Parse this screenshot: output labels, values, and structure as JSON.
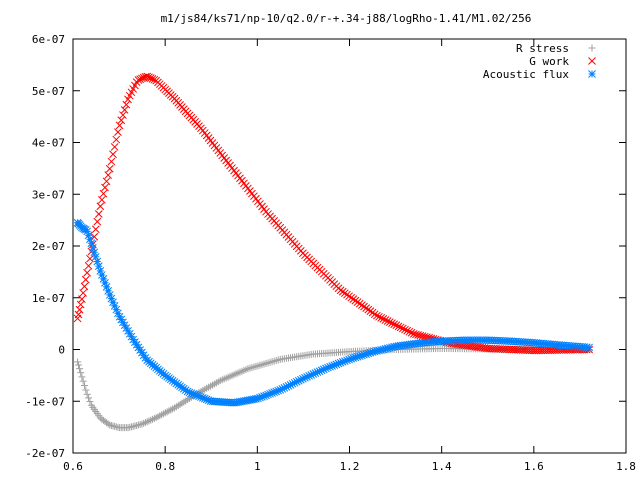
{
  "chart_data": {
    "type": "scatter",
    "title": "m1/js84/ks71/np-10/q2.0/r-+.34-j88/logRho-1.41/M1.02/256",
    "xlabel": "",
    "ylabel": "",
    "xlim": [
      0.6,
      1.8
    ],
    "ylim": [
      -2e-07,
      6e-07
    ],
    "x_ticks": [
      0.6,
      0.8,
      1.0,
      1.2,
      1.4,
      1.6,
      1.8
    ],
    "x_tick_labels": [
      "0.6",
      "0.8",
      "1",
      "1.2",
      "1.4",
      "1.6",
      "1.8"
    ],
    "y_ticks": [
      -2e-07,
      -1e-07,
      0,
      1e-07,
      2e-07,
      3e-07,
      4e-07,
      5e-07,
      6e-07
    ],
    "y_tick_labels": [
      "-2e-07",
      "-1e-07",
      "0",
      "1e-07",
      "2e-07",
      "3e-07",
      "4e-07",
      "5e-07",
      "6e-07"
    ],
    "grid": false,
    "legend_position": "top-right",
    "n_points_per_series": 256,
    "series": [
      {
        "name": "R stress",
        "marker": "+",
        "color": "#a0a0a0",
        "points": [
          [
            0.61,
            -2.4e-08
          ],
          [
            0.62,
            -5.5e-08
          ],
          [
            0.63,
            -8.5e-08
          ],
          [
            0.64,
            -1.08e-07
          ],
          [
            0.66,
            -1.33e-07
          ],
          [
            0.68,
            -1.46e-07
          ],
          [
            0.7,
            -1.51e-07
          ],
          [
            0.72,
            -1.51e-07
          ],
          [
            0.75,
            -1.44e-07
          ],
          [
            0.78,
            -1.32e-07
          ],
          [
            0.82,
            -1.13e-07
          ],
          [
            0.87,
            -8.5e-08
          ],
          [
            0.92,
            -6e-08
          ],
          [
            0.98,
            -3.7e-08
          ],
          [
            1.05,
            -1.9e-08
          ],
          [
            1.12,
            -9e-09
          ],
          [
            1.2,
            -4e-09
          ],
          [
            1.3,
            0
          ],
          [
            1.4,
            2e-09
          ],
          [
            1.5,
            1e-09
          ],
          [
            1.6,
            0
          ],
          [
            1.72,
            0
          ]
        ]
      },
      {
        "name": "G work",
        "marker": "x",
        "color": "#ff0000",
        "points": [
          [
            0.61,
            6e-08
          ],
          [
            0.62,
            1e-07
          ],
          [
            0.63,
            1.45e-07
          ],
          [
            0.64,
            1.9e-07
          ],
          [
            0.65,
            2.35e-07
          ],
          [
            0.66,
            2.8e-07
          ],
          [
            0.68,
            3.5e-07
          ],
          [
            0.7,
            4.3e-07
          ],
          [
            0.72,
            4.85e-07
          ],
          [
            0.74,
            5.2e-07
          ],
          [
            0.76,
            5.28e-07
          ],
          [
            0.78,
            5.2e-07
          ],
          [
            0.82,
            4.85e-07
          ],
          [
            0.88,
            4.25e-07
          ],
          [
            0.95,
            3.45e-07
          ],
          [
            1.02,
            2.65e-07
          ],
          [
            1.1,
            1.85e-07
          ],
          [
            1.18,
            1.15e-07
          ],
          [
            1.26,
            6.5e-08
          ],
          [
            1.34,
            3e-08
          ],
          [
            1.42,
            1.2e-08
          ],
          [
            1.5,
            2e-09
          ],
          [
            1.6,
            -2e-09
          ],
          [
            1.72,
            0
          ]
        ]
      },
      {
        "name": "Acoustic flux",
        "marker": "*",
        "color": "#0080ff",
        "points": [
          [
            0.61,
            2.45e-07
          ],
          [
            0.62,
            2.35e-07
          ],
          [
            0.63,
            2.3e-07
          ],
          [
            0.64,
            2.05e-07
          ],
          [
            0.66,
            1.5e-07
          ],
          [
            0.68,
            1.05e-07
          ],
          [
            0.7,
            6.5e-08
          ],
          [
            0.73,
            2e-08
          ],
          [
            0.76,
            -2e-08
          ],
          [
            0.8,
            -5e-08
          ],
          [
            0.85,
            -8.2e-08
          ],
          [
            0.9,
            -1e-07
          ],
          [
            0.95,
            -1.03e-07
          ],
          [
            1.0,
            -9.5e-08
          ],
          [
            1.05,
            -7.8e-08
          ],
          [
            1.1,
            -5.6e-08
          ],
          [
            1.15,
            -3.6e-08
          ],
          [
            1.2,
            -1.9e-08
          ],
          [
            1.25,
            -5e-09
          ],
          [
            1.3,
            6e-09
          ],
          [
            1.35,
            1.2e-08
          ],
          [
            1.4,
            1.6e-08
          ],
          [
            1.45,
            1.8e-08
          ],
          [
            1.5,
            1.8e-08
          ],
          [
            1.55,
            1.6e-08
          ],
          [
            1.6,
            1.3e-08
          ],
          [
            1.65,
            9e-09
          ],
          [
            1.72,
            4e-09
          ]
        ]
      }
    ]
  }
}
